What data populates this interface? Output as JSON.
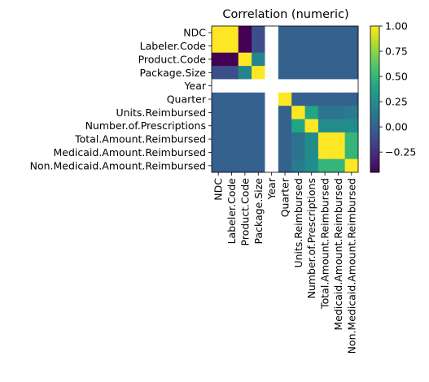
{
  "chart_data": {
    "type": "heatmap",
    "title": "Correlation (numeric)",
    "row_labels": [
      "NDC",
      "Labeler.Code",
      "Product.Code",
      "Package.Size",
      "Year",
      "Quarter",
      "Units.Reimbursed",
      "Number.of.Prescriptions",
      "Total.Amount.Reimbursed",
      "Medicaid.Amount.Reimbursed",
      "Non.Medicaid.Amount.Reimbursed"
    ],
    "col_labels": [
      "NDC",
      "Labeler.Code",
      "Product.Code",
      "Package.Size",
      "Year",
      "Quarter",
      "Units.Reimbursed",
      "Number.of.Prescriptions",
      "Total.Amount.Reimbursed",
      "Medicaid.Amount.Reimbursed",
      "Non.Medicaid.Amount.Reimbursed"
    ],
    "values": [
      [
        1.0,
        1.0,
        -0.45,
        -0.1,
        null,
        0.0,
        0.0,
        0.0,
        0.0,
        0.0,
        0.0
      ],
      [
        1.0,
        1.0,
        -0.45,
        -0.1,
        null,
        0.0,
        0.0,
        0.0,
        0.0,
        0.0,
        0.0
      ],
      [
        -0.45,
        -0.45,
        1.0,
        0.2,
        null,
        0.0,
        0.0,
        0.0,
        0.0,
        0.0,
        0.0
      ],
      [
        -0.1,
        -0.1,
        0.2,
        1.0,
        null,
        0.0,
        0.0,
        0.0,
        0.0,
        0.0,
        0.0
      ],
      [
        null,
        null,
        null,
        null,
        null,
        null,
        null,
        null,
        null,
        null,
        null
      ],
      [
        0.0,
        0.0,
        0.0,
        0.0,
        null,
        1.0,
        0.0,
        0.0,
        0.0,
        0.0,
        0.0
      ],
      [
        0.0,
        0.0,
        0.0,
        0.0,
        null,
        0.0,
        1.0,
        0.4,
        0.1,
        0.1,
        0.15
      ],
      [
        0.0,
        0.0,
        0.0,
        0.0,
        null,
        0.0,
        0.4,
        1.0,
        0.25,
        0.25,
        0.25
      ],
      [
        0.0,
        0.0,
        0.0,
        0.0,
        null,
        0.0,
        0.1,
        0.25,
        1.0,
        1.0,
        0.5
      ],
      [
        0.0,
        0.0,
        0.0,
        0.0,
        null,
        0.0,
        0.1,
        0.25,
        1.0,
        1.0,
        0.5
      ],
      [
        0.0,
        0.0,
        0.0,
        0.0,
        null,
        0.0,
        0.15,
        0.25,
        0.5,
        0.5,
        1.0
      ]
    ],
    "colormap": "viridis",
    "vmin": -0.45,
    "vmax": 1.0,
    "colorbar_ticks": [
      -0.25,
      0.0,
      0.25,
      0.5,
      0.75,
      1.0
    ],
    "colorbar_tick_labels": [
      "−0.25",
      "0.00",
      "0.25",
      "0.50",
      "0.75",
      "1.00"
    ],
    "nan_color": "#ffffff"
  }
}
